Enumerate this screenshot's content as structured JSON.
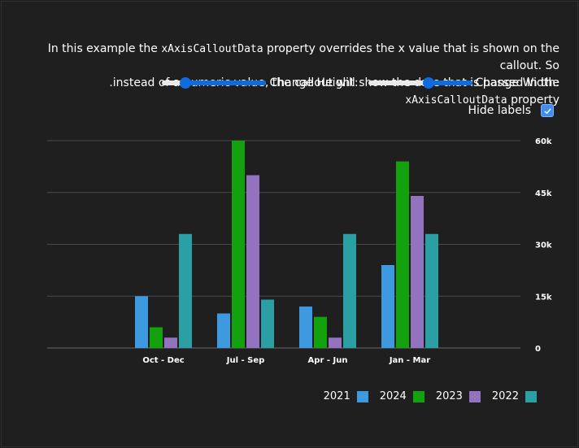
{
  "description": {
    "line1_prefix": "In this example the",
    "line1_code": "xAxisCalloutData",
    "line1_suffix": "property overrides the x value that is shown on the callout. So",
    "line2_prefix": ".instead of a numeric value, the callout will show the date that is passed in the",
    "line2_code": "xAxisCalloutData",
    "line2_suffix": "property"
  },
  "controls": {
    "height_label": ":Change Height",
    "width_label": ":Change Width",
    "height_value": 0.78,
    "width_value": 0.42
  },
  "hide_labels": {
    "label": "Hide labels",
    "checked": true
  },
  "colors": {
    "2021": "#3e9ae0",
    "2024": "#13a10e",
    "2023": "#9373c0",
    "2022": "#2aa0a4",
    "grid": "#4a4a4a",
    "text": "#ffffff"
  },
  "chart_data": {
    "type": "bar",
    "categories": [
      "Oct - Dec",
      "Jul - Sep",
      "Apr - Jun",
      "Jan - Mar"
    ],
    "series": [
      {
        "name": "2021",
        "values": [
          15000,
          10000,
          12000,
          24000
        ]
      },
      {
        "name": "2024",
        "values": [
          6000,
          60000,
          9000,
          54000
        ]
      },
      {
        "name": "2023",
        "values": [
          3000,
          50000,
          3000,
          44000
        ]
      },
      {
        "name": "2022",
        "values": [
          33000,
          14000,
          33000,
          33000
        ]
      }
    ],
    "y_ticks": [
      "0",
      "15k",
      "30k",
      "45k",
      "60k"
    ],
    "ylim": [
      0,
      60000
    ],
    "grid": true,
    "legend_position": "bottom-right",
    "axis_position": "right"
  },
  "legend": [
    {
      "label": "2021",
      "key": "2021"
    },
    {
      "label": "2024",
      "key": "2024"
    },
    {
      "label": "2023",
      "key": "2023"
    },
    {
      "label": "2022",
      "key": "2022"
    }
  ]
}
